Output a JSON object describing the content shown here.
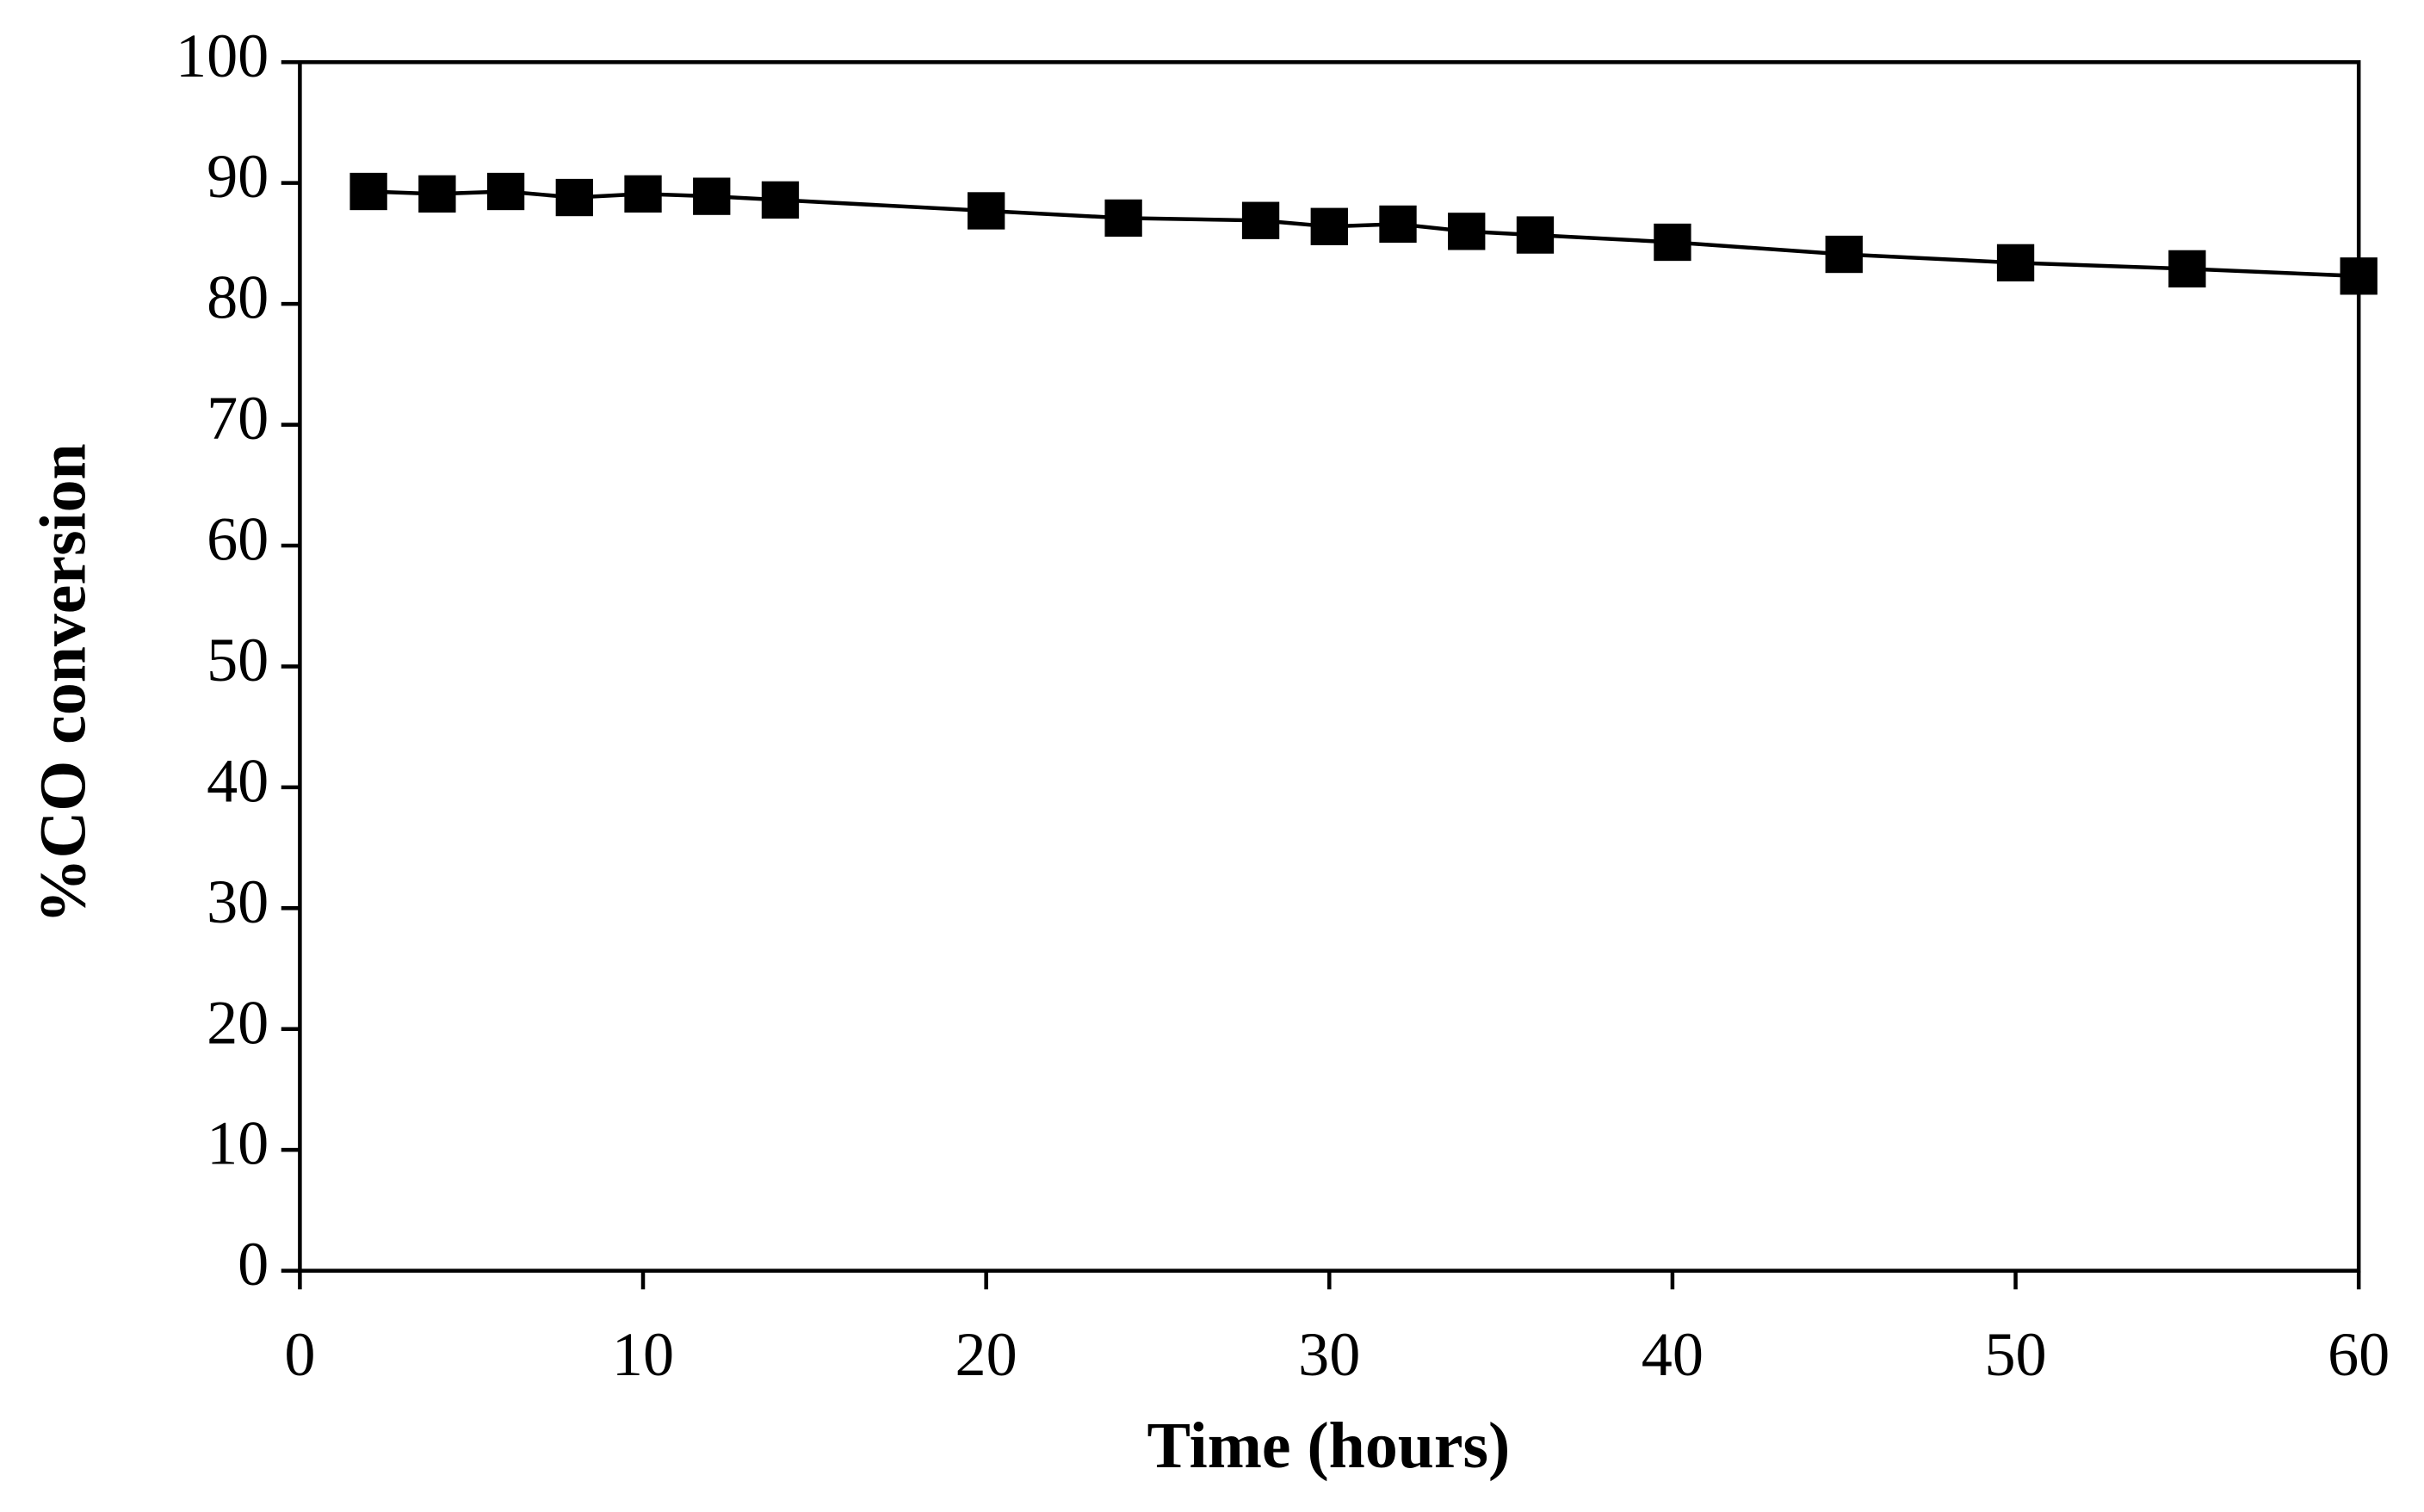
{
  "chart_data": {
    "type": "line",
    "xlabel": "Time (hours)",
    "ylabel": "%CO conversion",
    "x": [
      2,
      4,
      6,
      8,
      10,
      12,
      14,
      20,
      24,
      28,
      30,
      32,
      34,
      36,
      40,
      45,
      50,
      55,
      60
    ],
    "series": [
      {
        "color": "#000000",
        "marker": "square",
        "values": [
          89.3,
          89.1,
          89.3,
          88.8,
          89.1,
          88.9,
          88.6,
          87.7,
          87.1,
          86.9,
          86.4,
          86.6,
          86.0,
          85.7,
          85.1,
          84.1,
          83.4,
          82.9,
          82.3
        ]
      }
    ],
    "xlim": [
      0,
      60
    ],
    "xticks": [
      0,
      10,
      20,
      30,
      40,
      50,
      60
    ],
    "ylim": [
      0,
      100
    ],
    "yticks": [
      0,
      10,
      20,
      30,
      40,
      50,
      60,
      70,
      80,
      90,
      100
    ],
    "grid": false
  }
}
